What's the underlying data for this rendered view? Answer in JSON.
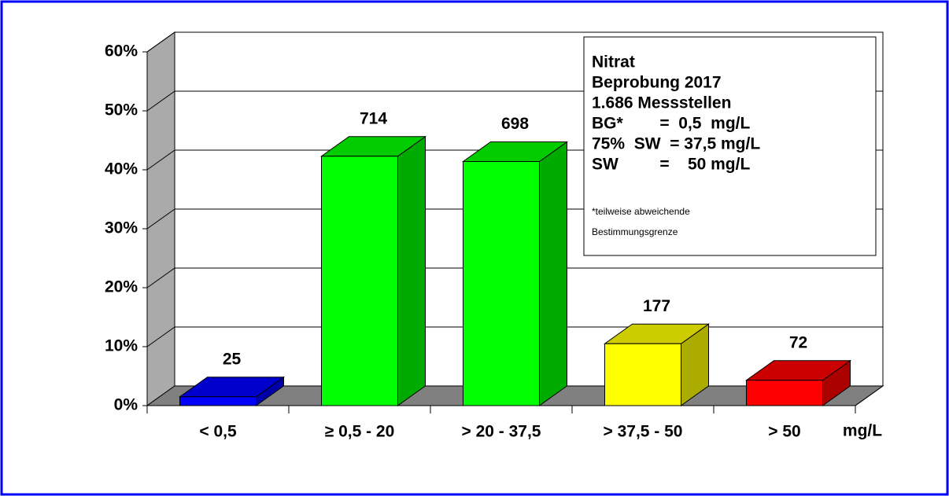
{
  "chart_data": {
    "type": "bar3d",
    "categories": [
      "< 0,5",
      "≥ 0,5 - 20",
      "> 20 - 37,5",
      "> 37,5 - 50",
      "> 50"
    ],
    "values": [
      1.5,
      42.3,
      41.4,
      10.5,
      4.3
    ],
    "counts": [
      25,
      714,
      698,
      177,
      72
    ],
    "colors": [
      "#0000ff",
      "#00ff00",
      "#00ff00",
      "#ffff00",
      "#ff0000"
    ],
    "ylim": [
      0,
      60
    ],
    "yticks": [
      {
        "value": 0,
        "label": "0%"
      },
      {
        "value": 10,
        "label": "10%"
      },
      {
        "value": 20,
        "label": "20%"
      },
      {
        "value": 30,
        "label": "30%"
      },
      {
        "value": 40,
        "label": "40%"
      },
      {
        "value": 50,
        "label": "50%"
      },
      {
        "value": 60,
        "label": "60%"
      }
    ],
    "grid": true,
    "x_unit": "mg/L",
    "info_box": [
      "Nitrat",
      "Beprobung 2017",
      "1.686 Messstellen",
      "BG*        =  0,5  mg/L",
      "75%  SW  = 37,5 mg/L",
      "SW         =    50 mg/L"
    ],
    "info_note": [
      "*teilweise abweichende",
      "Bestimmungsgrenze"
    ]
  }
}
